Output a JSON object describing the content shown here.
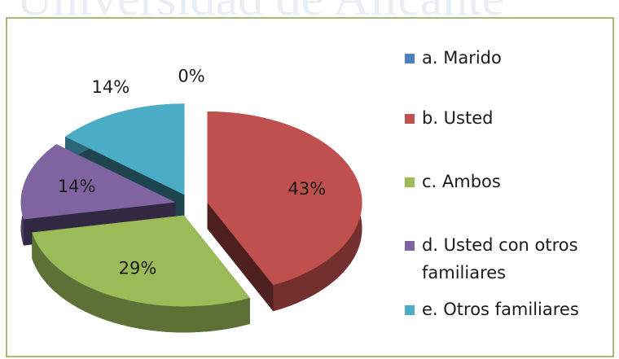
{
  "chart_data": {
    "type": "pie",
    "watermark": "Universidad de Alicante",
    "categories": [
      "a. Marido",
      "b. Usted",
      "c. Ambos",
      "d. Usted con otros familiares",
      "e. Otros familiares"
    ],
    "values": [
      0,
      43,
      29,
      14,
      14
    ],
    "value_labels": [
      "0%",
      "43%",
      "29%",
      "14%",
      "14%"
    ],
    "colors": [
      "#4f81bd",
      "#c0504d",
      "#9bbb59",
      "#8064a2",
      "#4bacc6"
    ],
    "legend": "right"
  }
}
